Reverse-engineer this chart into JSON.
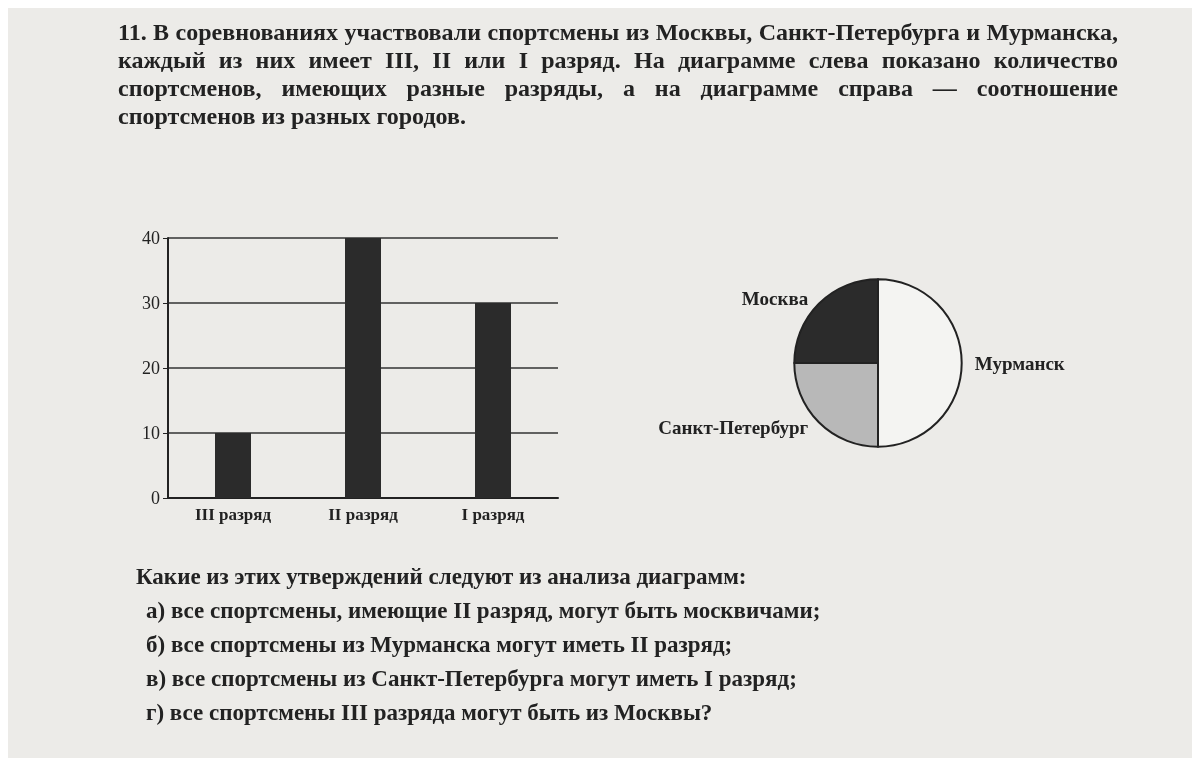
{
  "chart_data": [
    {
      "type": "bar",
      "title": "11. В соревнованиях участвовали спортсмены из Москвы, Санкт-Петербурга и Мурманска, каждый из них имеет III, II или I разряд. На диаграмме слева показано количество спортсменов, имеющих разные разряды, а на диаграмме справа — соотношение спортсменов из разных городов.",
      "categories": [
        "III разряд",
        "II разряд",
        "I разряд"
      ],
      "values": [
        10,
        40,
        30
      ],
      "color": "#2b2b2b",
      "ylim": [
        0,
        40
      ],
      "yticks": [
        0,
        10,
        20,
        30,
        40
      ],
      "grid": "y"
    },
    {
      "type": "pie",
      "categories": [
        "Мурманск",
        "Санкт-Петербург",
        "Москва"
      ],
      "values": [
        50,
        25,
        25
      ],
      "colors": [
        "#f4f4f2",
        "#b8b8b8",
        "#2b2b2b"
      ],
      "annotations": [
        "Какие из этих утверждений следуют из анализа диаграмм:",
        "а) все спортсмены, имеющие II разряд, могут быть москвичами;",
        "б) все спортсмены из Мурманска могут иметь II разряд;",
        "в) все спортсмены из Санкт-Петербурга могут иметь I разряд;",
        "г) все спортсмены III разряда могут быть из Москвы?"
      ]
    }
  ]
}
